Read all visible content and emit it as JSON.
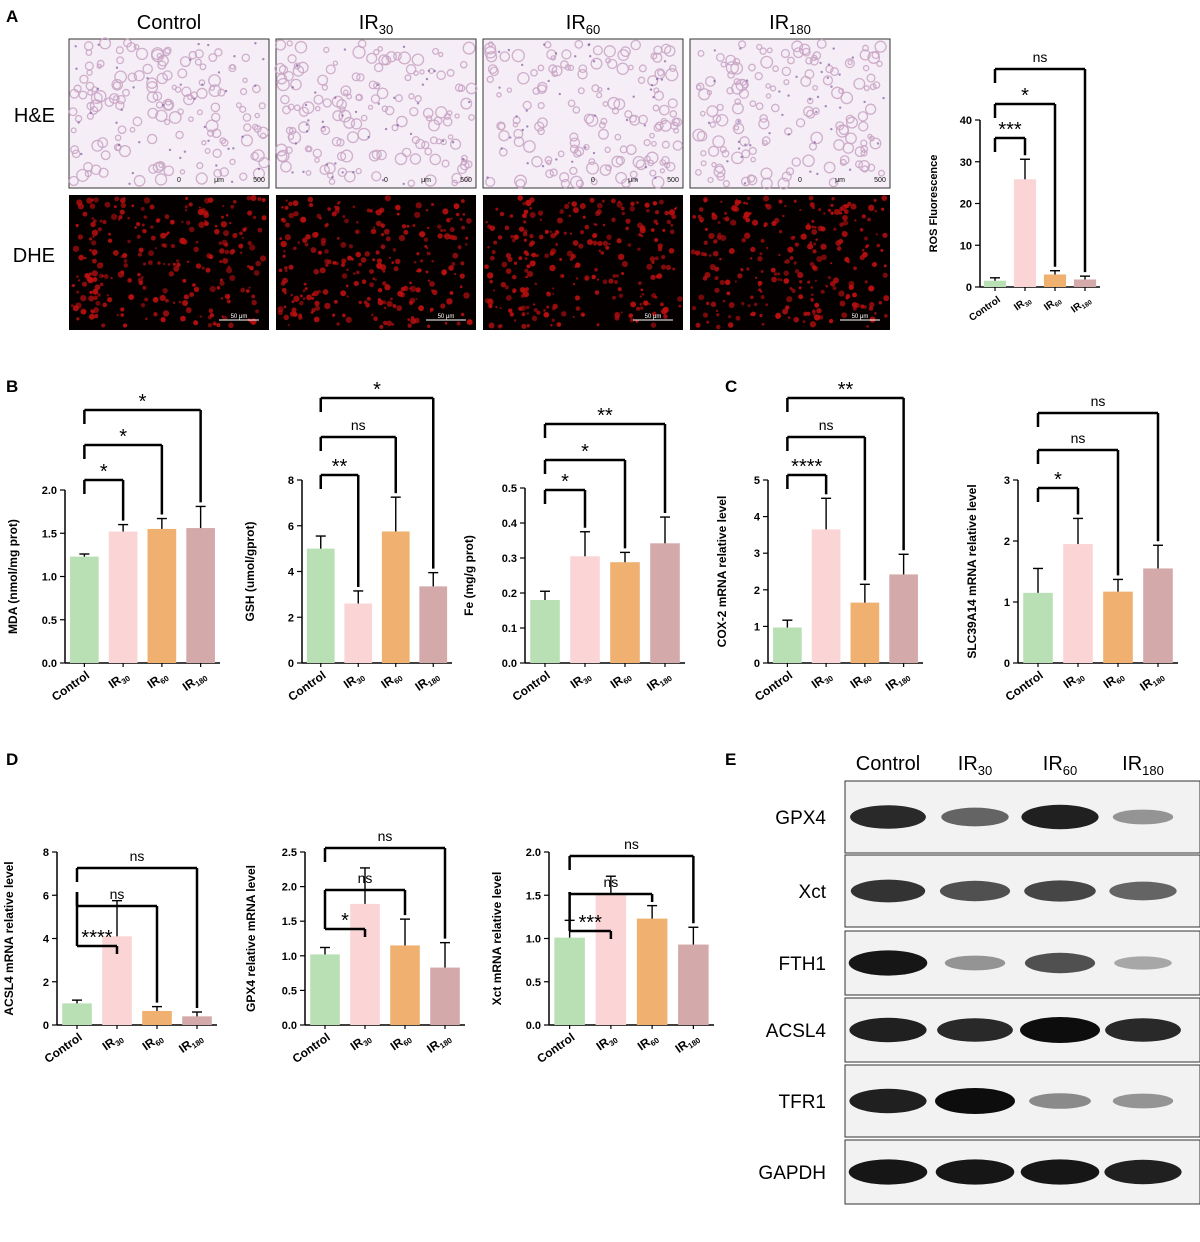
{
  "panel_letters": [
    "A",
    "B",
    "C",
    "D",
    "E"
  ],
  "groups": [
    {
      "main": "Control",
      "sub": ""
    },
    {
      "main": "IR",
      "sub": "30"
    },
    {
      "main": "IR",
      "sub": "60"
    },
    {
      "main": "IR",
      "sub": "180"
    }
  ],
  "colors": {
    "bars": [
      "#b9e0b4",
      "#fbd5d5",
      "#efb070",
      "#d4a9a9"
    ],
    "histology_he": "#c8a3c4",
    "fluorescence": "#c01010"
  },
  "panel_a": {
    "row_labels": [
      "H&E",
      "DHE"
    ],
    "he_scalebar": [
      "0",
      "μm",
      "500"
    ],
    "dhe_scalebar": "50 μm"
  },
  "chart_data": [
    {
      "id": "ros",
      "type": "bar",
      "ylabel": "ROS Fluorescence",
      "ylim": [
        0,
        40
      ],
      "yticks": [
        "0",
        "10",
        "20",
        "30",
        "40"
      ],
      "values": [
        1.5,
        25.8,
        3.0,
        1.8
      ],
      "errors": [
        0.7,
        4.8,
        0.9,
        0.8
      ],
      "comparisons": [
        {
          "to": 1,
          "label": "***"
        },
        {
          "to": 2,
          "label": "*"
        },
        {
          "to": 3,
          "label": "ns"
        }
      ]
    },
    {
      "id": "mda",
      "type": "bar",
      "ylabel": "MDA (nmol/mg prot)",
      "ylim": [
        0,
        2.0
      ],
      "yticks": [
        "0.0",
        "0.5",
        "1.0",
        "1.5",
        "2.0"
      ],
      "values": [
        1.23,
        1.52,
        1.55,
        1.56
      ],
      "errors": [
        0.03,
        0.08,
        0.12,
        0.25
      ],
      "comparisons": [
        {
          "to": 1,
          "label": "*"
        },
        {
          "to": 2,
          "label": "*"
        },
        {
          "to": 3,
          "label": "*"
        }
      ]
    },
    {
      "id": "gsh",
      "type": "bar",
      "ylabel": "GSH (umol/gprot)",
      "ylim": [
        0,
        8
      ],
      "yticks": [
        "0",
        "2",
        "4",
        "6",
        "8"
      ],
      "values": [
        5.0,
        2.6,
        5.75,
        3.35
      ],
      "errors": [
        0.55,
        0.55,
        1.5,
        0.6
      ],
      "comparisons": [
        {
          "to": 1,
          "label": "**"
        },
        {
          "to": 2,
          "label": "ns"
        },
        {
          "to": 3,
          "label": "*"
        }
      ]
    },
    {
      "id": "fe",
      "type": "bar",
      "ylabel": "Fe (mg/g prot)",
      "ylim": [
        0,
        0.5
      ],
      "yticks": [
        "0.0",
        "0.1",
        "0.2",
        "0.3",
        "0.4",
        "0.5"
      ],
      "values": [
        0.18,
        0.305,
        0.288,
        0.342
      ],
      "errors": [
        0.025,
        0.07,
        0.028,
        0.075
      ],
      "comparisons": [
        {
          "to": 1,
          "label": "*"
        },
        {
          "to": 2,
          "label": "*"
        },
        {
          "to": 3,
          "label": "**"
        }
      ]
    },
    {
      "id": "cox2",
      "type": "bar",
      "ylabel": "COX-2 mRNA relative level",
      "ylim": [
        0,
        5
      ],
      "yticks": [
        "0",
        "1",
        "2",
        "3",
        "4",
        "5"
      ],
      "values": [
        0.97,
        3.65,
        1.65,
        2.42
      ],
      "errors": [
        0.2,
        0.85,
        0.5,
        0.55
      ],
      "comparisons": [
        {
          "to": 1,
          "label": "****"
        },
        {
          "to": 2,
          "label": "ns"
        },
        {
          "to": 3,
          "label": "**"
        }
      ]
    },
    {
      "id": "slc",
      "type": "bar",
      "ylabel": "SLC39A14 mRNA relative level",
      "ylim": [
        0,
        3
      ],
      "yticks": [
        "0",
        "1",
        "2",
        "3"
      ],
      "values": [
        1.15,
        1.95,
        1.17,
        1.55
      ],
      "errors": [
        0.4,
        0.42,
        0.2,
        0.38
      ],
      "comparisons": [
        {
          "to": 1,
          "label": "*"
        },
        {
          "to": 2,
          "label": "ns"
        },
        {
          "to": 3,
          "label": "ns"
        }
      ]
    },
    {
      "id": "acsl4",
      "type": "bar",
      "ylabel": "ACSL4 mRNA relative level",
      "ylim": [
        0,
        8
      ],
      "yticks": [
        "0",
        "2",
        "4",
        "6",
        "8"
      ],
      "values": [
        1.0,
        4.1,
        0.65,
        0.4
      ],
      "errors": [
        0.15,
        1.65,
        0.2,
        0.2
      ],
      "comparisons": [
        {
          "to": 1,
          "label": "****"
        },
        {
          "to": 2,
          "label": "ns"
        },
        {
          "to": 3,
          "label": "ns"
        }
      ]
    },
    {
      "id": "gpx4",
      "type": "bar",
      "ylabel": "GPX4 relative mRNA level",
      "ylim": [
        0,
        2.5
      ],
      "yticks": [
        "0.0",
        "0.5",
        "1.0",
        "1.5",
        "2.0",
        "2.5"
      ],
      "values": [
        1.02,
        1.75,
        1.15,
        0.83
      ],
      "errors": [
        0.1,
        0.52,
        0.38,
        0.36
      ],
      "comparisons": [
        {
          "to": 1,
          "label": "*"
        },
        {
          "to": 2,
          "label": "ns"
        },
        {
          "to": 3,
          "label": "ns"
        }
      ]
    },
    {
      "id": "xct",
      "type": "bar",
      "ylabel": "Xct mRNA relative level",
      "ylim": [
        0,
        2.0
      ],
      "yticks": [
        "0.0",
        "0.5",
        "1.0",
        "1.5",
        "2.0"
      ],
      "values": [
        1.01,
        1.52,
        1.23,
        0.93
      ],
      "errors": [
        0.2,
        0.2,
        0.15,
        0.2
      ],
      "comparisons": [
        {
          "to": 1,
          "label": "***"
        },
        {
          "to": 2,
          "label": "ns"
        },
        {
          "to": 3,
          "label": "ns"
        }
      ]
    }
  ],
  "western_blot": {
    "proteins": [
      "GPX4",
      "Xct",
      "FTH1",
      "ACSL4",
      "TFR1",
      "GAPDH"
    ],
    "relative_intensity": [
      [
        0.85,
        0.55,
        0.9,
        0.3
      ],
      [
        0.8,
        0.65,
        0.7,
        0.55
      ],
      [
        0.95,
        0.3,
        0.65,
        0.2
      ],
      [
        0.9,
        0.85,
        1.0,
        0.85
      ],
      [
        0.9,
        1.0,
        0.35,
        0.3
      ],
      [
        0.95,
        0.95,
        0.95,
        0.9
      ]
    ]
  }
}
